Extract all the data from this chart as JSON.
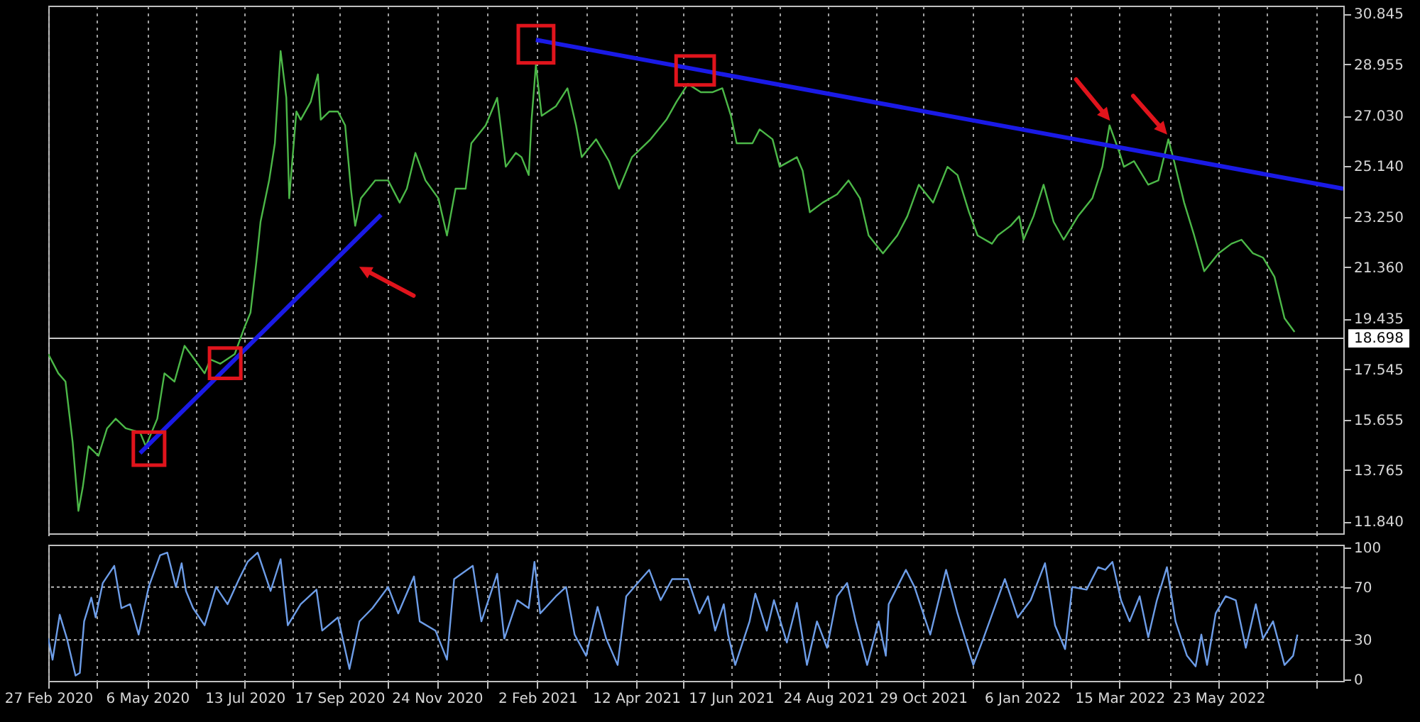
{
  "chart_data": [
    {
      "type": "line",
      "grid": "x",
      "tick_labels": "y",
      "xlim": [
        "2020-02-27",
        "2022-08-18"
      ],
      "xticks": [
        {
          "value": "2020-02-27",
          "label": null
        },
        {
          "value": "2020-04-01",
          "label": null
        },
        {
          "value": "2020-05-06",
          "label": null
        },
        {
          "value": "2020-06-09",
          "label": null
        },
        {
          "value": "2020-07-13",
          "label": null
        },
        {
          "value": "2020-08-15",
          "label": null
        },
        {
          "value": "2020-09-17",
          "label": null
        },
        {
          "value": "2020-10-21",
          "label": null
        },
        {
          "value": "2020-11-24",
          "label": null
        },
        {
          "value": "2020-12-29",
          "label": null
        },
        {
          "value": "2021-02-02",
          "label": null
        },
        {
          "value": "2021-03-08",
          "label": null
        },
        {
          "value": "2021-04-12",
          "label": null
        },
        {
          "value": "2021-05-15",
          "label": null
        },
        {
          "value": "2021-06-17",
          "label": null
        },
        {
          "value": "2021-07-21",
          "label": null
        },
        {
          "value": "2021-08-24",
          "label": null
        },
        {
          "value": "2021-09-26",
          "label": null
        },
        {
          "value": "2021-10-29",
          "label": null
        },
        {
          "value": "2021-12-03",
          "label": null
        },
        {
          "value": "2022-01-06",
          "label": null
        },
        {
          "value": "2022-02-09",
          "label": null
        },
        {
          "value": "2022-03-15",
          "label": null
        },
        {
          "value": "2022-04-19",
          "label": null
        },
        {
          "value": "2022-05-23",
          "label": null
        },
        {
          "value": "2022-06-26",
          "label": null
        },
        {
          "value": "2022-07-30",
          "label": null
        }
      ],
      "ylim": [
        11.4,
        31.15
      ],
      "yticks": [
        {
          "value": 11.84,
          "label": "11.840"
        },
        13.765,
        15.655,
        17.545,
        19.435,
        {
          "value": 21.36,
          "label": "21.360"
        },
        {
          "value": 23.25,
          "label": "23.250"
        },
        {
          "value": 25.14,
          "label": "25.140"
        },
        {
          "value": 27.03,
          "label": "27.030"
        },
        28.955,
        30.845
      ],
      "ref_lines": [
        {
          "axis": "y",
          "value": 18.698,
          "label": "18.698",
          "color": "#c8c8c8",
          "line_style": "solid"
        }
      ],
      "series": [
        {
          "color": "#4cb848",
          "x": [
            "2020-02-27",
            "2020-03-05",
            "2020-03-10",
            "2020-03-15",
            "2020-03-19",
            "2020-03-22",
            "2020-03-26",
            "2020-04-02",
            "2020-04-08",
            "2020-04-14",
            "2020-04-21",
            "2020-05-01",
            "2020-05-05",
            "2020-05-13",
            "2020-05-18",
            "2020-05-25",
            "2020-06-01",
            "2020-06-08",
            "2020-06-15",
            "2020-06-19",
            "2020-06-26",
            "2020-07-06",
            "2020-07-13",
            "2020-07-17",
            "2020-07-21",
            "2020-07-24",
            "2020-07-30",
            "2020-08-03",
            "2020-08-07",
            "2020-08-11",
            "2020-08-13",
            "2020-08-18",
            "2020-08-21",
            "2020-08-28",
            "2020-09-02",
            "2020-09-04",
            "2020-09-10",
            "2020-09-16",
            "2020-09-21",
            "2020-09-25",
            "2020-09-28",
            "2020-10-02",
            "2020-10-12",
            "2020-10-21",
            "2020-10-29",
            "2020-11-03",
            "2020-11-09",
            "2020-11-16",
            "2020-11-25",
            "2020-12-01",
            "2020-12-07",
            "2020-12-14",
            "2020-12-18",
            "2020-12-28",
            "2021-01-05",
            "2021-01-11",
            "2021-01-18",
            "2021-01-22",
            "2021-01-27",
            "2021-01-29",
            "2021-02-01",
            "2021-02-05",
            "2021-02-15",
            "2021-02-23",
            "2021-03-01",
            "2021-03-05",
            "2021-03-15",
            "2021-03-24",
            "2021-03-31",
            "2021-04-09",
            "2021-04-22",
            "2021-05-03",
            "2021-05-10",
            "2021-05-18",
            "2021-05-27",
            "2021-06-04",
            "2021-06-11",
            "2021-06-17",
            "2021-06-21",
            "2021-07-02",
            "2021-07-07",
            "2021-07-16",
            "2021-07-21",
            "2021-08-02",
            "2021-08-06",
            "2021-08-11",
            "2021-08-20",
            "2021-08-30",
            "2021-09-07",
            "2021-09-15",
            "2021-09-21",
            "2021-10-01",
            "2021-10-11",
            "2021-10-18",
            "2021-10-26",
            "2021-11-05",
            "2021-11-15",
            "2021-11-22",
            "2021-11-30",
            "2021-12-06",
            "2021-12-16",
            "2021-12-20",
            "2021-12-29",
            "2022-01-04",
            "2022-01-07",
            "2022-01-14",
            "2022-01-21",
            "2022-01-28",
            "2022-02-04",
            "2022-02-14",
            "2022-02-24",
            "2022-03-03",
            "2022-03-08",
            "2022-03-15",
            "2022-03-18",
            "2022-03-25",
            "2022-04-04",
            "2022-04-11",
            "2022-04-18",
            "2022-04-22",
            "2022-04-29",
            "2022-05-06",
            "2022-05-13",
            "2022-05-23",
            "2022-06-01",
            "2022-06-08",
            "2022-06-16",
            "2022-06-23",
            "2022-07-01",
            "2022-07-08",
            "2022-07-15"
          ],
          "values": [
            18.11,
            17.39,
            17.08,
            14.81,
            12.24,
            13.11,
            14.66,
            14.3,
            15.33,
            15.69,
            15.33,
            15.18,
            14.66,
            15.69,
            17.39,
            17.08,
            18.42,
            17.91,
            17.39,
            17.91,
            17.75,
            18.11,
            19.14,
            19.66,
            21.52,
            23.06,
            24.61,
            26.0,
            29.45,
            27.7,
            23.94,
            27.19,
            26.88,
            27.55,
            28.58,
            26.88,
            27.19,
            27.19,
            26.67,
            24.3,
            22.91,
            23.94,
            24.61,
            24.61,
            23.78,
            24.3,
            25.64,
            24.61,
            23.94,
            22.55,
            24.3,
            24.3,
            26.0,
            26.67,
            27.7,
            25.12,
            25.64,
            25.48,
            24.81,
            26.88,
            28.94,
            27.03,
            27.39,
            28.06,
            26.67,
            25.48,
            26.15,
            25.33,
            24.3,
            25.48,
            26.15,
            26.88,
            27.55,
            28.22,
            27.91,
            27.91,
            28.06,
            27.03,
            26.0,
            26.0,
            26.52,
            26.15,
            25.12,
            25.48,
            24.97,
            23.42,
            23.78,
            24.09,
            24.61,
            23.94,
            22.55,
            21.88,
            22.55,
            23.27,
            24.45,
            23.78,
            25.12,
            24.81,
            23.42,
            22.55,
            22.24,
            22.55,
            22.91,
            23.27,
            22.39,
            23.27,
            24.45,
            23.06,
            22.39,
            23.27,
            23.94,
            25.12,
            26.67,
            25.64,
            25.12,
            25.33,
            24.45,
            24.61,
            26.15,
            25.33,
            23.78,
            22.55,
            21.21,
            21.88,
            22.24,
            22.39,
            21.88,
            21.72,
            21.0,
            19.45,
            18.94
          ]
        },
        {
          "type": "line",
          "color": "#1a1ae6",
          "x": [
            "2020-05-01",
            "2020-10-16"
          ],
          "values": [
            14.4,
            23.32
          ]
        },
        {
          "type": "line",
          "color": "#1a1ae6",
          "x": [
            "2021-02-01",
            "2022-08-18"
          ],
          "values": [
            29.87,
            24.3
          ]
        }
      ]
    },
    {
      "type": "line",
      "grid": "x",
      "xlim": [
        "2020-02-27",
        "2022-08-18"
      ],
      "xticks": [
        {
          "value": "2020-02-27",
          "label": "27 Feb 2020"
        },
        {
          "value": "2020-04-01",
          "label": null
        },
        {
          "value": "2020-05-06",
          "label": "6 May 2020"
        },
        {
          "value": "2020-06-09",
          "label": null
        },
        {
          "value": "2020-07-13",
          "label": "13 Jul 2020"
        },
        {
          "value": "2020-08-15",
          "label": null
        },
        {
          "value": "2020-09-17",
          "label": "17 Sep 2020"
        },
        {
          "value": "2020-10-21",
          "label": null
        },
        {
          "value": "2020-11-24",
          "label": "24 Nov 2020"
        },
        {
          "value": "2020-12-29",
          "label": null
        },
        {
          "value": "2021-02-02",
          "label": "2 Feb 2021"
        },
        {
          "value": "2021-03-08",
          "label": null
        },
        {
          "value": "2021-04-12",
          "label": "12 Apr 2021"
        },
        {
          "value": "2021-05-15",
          "label": null
        },
        {
          "value": "2021-06-17",
          "label": "17 Jun 2021"
        },
        {
          "value": "2021-07-21",
          "label": null
        },
        {
          "value": "2021-08-24",
          "label": "24 Aug 2021"
        },
        {
          "value": "2021-09-26",
          "label": null
        },
        {
          "value": "2021-10-29",
          "label": "29 Oct 2021"
        },
        {
          "value": "2021-12-03",
          "label": null
        },
        {
          "value": "2022-01-06",
          "label": "6 Jan 2022"
        },
        {
          "value": "2022-02-09",
          "label": null
        },
        {
          "value": "2022-03-15",
          "label": "15 Mar 2022"
        },
        {
          "value": "2022-04-19",
          "label": null
        },
        {
          "value": "2022-05-23",
          "label": "23 May 2022"
        },
        {
          "value": "2022-06-26",
          "label": null
        },
        {
          "value": "2022-07-30",
          "label": null
        }
      ],
      "ylim": [
        -1,
        102
      ],
      "yticks": [
        0,
        30,
        70,
        100
      ],
      "ref_lines": [
        {
          "axis": "y",
          "value": 30,
          "color": "#bbbbbb",
          "line_style": "dotted"
        },
        {
          "axis": "y",
          "value": 70,
          "color": "#bbbbbb",
          "line_style": "dotted"
        }
      ],
      "series": [
        {
          "color": "#6d9de8",
          "x": [
            "2020-02-27",
            "2020-03-01",
            "2020-03-06",
            "2020-03-11",
            "2020-03-17",
            "2020-03-20",
            "2020-03-23",
            "2020-03-28",
            "2020-03-31",
            "2020-04-05",
            "2020-04-13",
            "2020-04-18",
            "2020-04-24",
            "2020-04-30",
            "2020-05-07",
            "2020-05-15",
            "2020-05-20",
            "2020-05-26",
            "2020-05-30",
            "2020-06-02",
            "2020-06-07",
            "2020-06-15",
            "2020-06-23",
            "2020-07-01",
            "2020-07-09",
            "2020-07-15",
            "2020-07-22",
            "2020-07-31",
            "2020-08-07",
            "2020-08-12",
            "2020-08-21",
            "2020-09-01",
            "2020-09-05",
            "2020-09-16",
            "2020-09-24",
            "2020-10-01",
            "2020-10-10",
            "2020-10-21",
            "2020-10-28",
            "2020-11-08",
            "2020-11-12",
            "2020-11-23",
            "2020-12-01",
            "2020-12-06",
            "2020-12-19",
            "2020-12-25",
            "2021-01-05",
            "2021-01-10",
            "2021-01-19",
            "2021-01-27",
            "2021-01-31",
            "2021-02-04",
            "2021-02-15",
            "2021-02-22",
            "2021-02-28",
            "2021-03-08",
            "2021-03-16",
            "2021-03-22",
            "2021-03-30",
            "2021-04-05",
            "2021-04-13",
            "2021-04-21",
            "2021-04-29",
            "2021-05-07",
            "2021-05-18",
            "2021-05-26",
            "2021-06-01",
            "2021-06-06",
            "2021-06-12",
            "2021-06-15",
            "2021-06-20",
            "2021-06-30",
            "2021-07-04",
            "2021-07-12",
            "2021-07-17",
            "2021-07-26",
            "2021-08-02",
            "2021-08-09",
            "2021-08-16",
            "2021-08-23",
            "2021-08-30",
            "2021-09-06",
            "2021-09-12",
            "2021-09-20",
            "2021-09-28",
            "2021-10-03",
            "2021-10-05",
            "2021-10-17",
            "2021-10-23",
            "2021-11-03",
            "2021-11-14",
            "2021-11-22",
            "2021-12-03",
            "2021-12-10",
            "2021-12-25",
            "2022-01-03",
            "2022-01-12",
            "2022-01-22",
            "2022-01-29",
            "2022-02-05",
            "2022-02-10",
            "2022-02-20",
            "2022-02-28",
            "2022-03-05",
            "2022-03-10",
            "2022-03-16",
            "2022-03-22",
            "2022-03-29",
            "2022-04-04",
            "2022-04-10",
            "2022-04-17",
            "2022-04-23",
            "2022-05-01",
            "2022-05-07",
            "2022-05-11",
            "2022-05-15",
            "2022-05-21",
            "2022-05-28",
            "2022-06-04",
            "2022-06-11",
            "2022-06-18",
            "2022-06-23",
            "2022-06-30",
            "2022-07-08",
            "2022-07-14",
            "2022-07-17"
          ],
          "values": [
            31,
            15,
            49,
            31,
            3,
            5,
            44,
            62,
            47,
            73,
            86,
            54,
            57,
            34,
            70,
            94,
            96,
            70,
            88,
            67,
            54,
            41,
            70,
            57,
            76,
            89,
            96,
            67,
            91,
            41,
            57,
            68,
            37,
            47,
            8,
            44,
            54,
            70,
            50,
            78,
            44,
            37,
            15,
            76,
            86,
            44,
            80,
            31,
            60,
            54,
            89,
            50,
            63,
            70,
            34,
            18,
            55,
            31,
            11,
            63,
            73,
            83,
            60,
            76,
            76,
            50,
            63,
            37,
            57,
            34,
            11,
            44,
            65,
            37,
            60,
            28,
            58,
            11,
            44,
            24,
            63,
            73,
            44,
            11,
            44,
            18,
            57,
            83,
            70,
            34,
            83,
            50,
            11,
            31,
            76,
            47,
            60,
            88,
            41,
            23,
            70,
            68,
            85,
            83,
            89,
            60,
            44,
            63,
            32,
            60,
            85,
            44,
            18,
            10,
            34,
            11,
            50,
            63,
            60,
            24,
            57,
            31,
            44,
            11,
            18,
            34
          ]
        }
      ]
    }
  ]
}
